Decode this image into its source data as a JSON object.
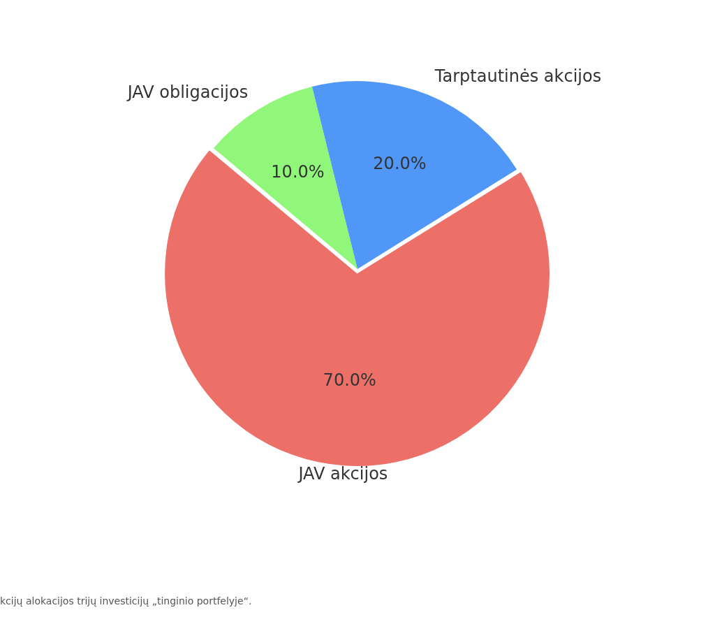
{
  "chart_data": {
    "type": "pie",
    "categories": [
      "JAV akcijos",
      "JAV obligacijos",
      "Tarptautinės akcijos"
    ],
    "values": [
      70,
      10,
      20
    ],
    "colors": [
      "#ec7068",
      "#90f77a",
      "#5097f8"
    ],
    "value_labels": [
      "70.0%",
      "10.0%",
      "20.0%"
    ],
    "legend": false,
    "annotations": [
      "kcijų alokacijos trijų investicijų „tinginio portfelyje“."
    ]
  }
}
